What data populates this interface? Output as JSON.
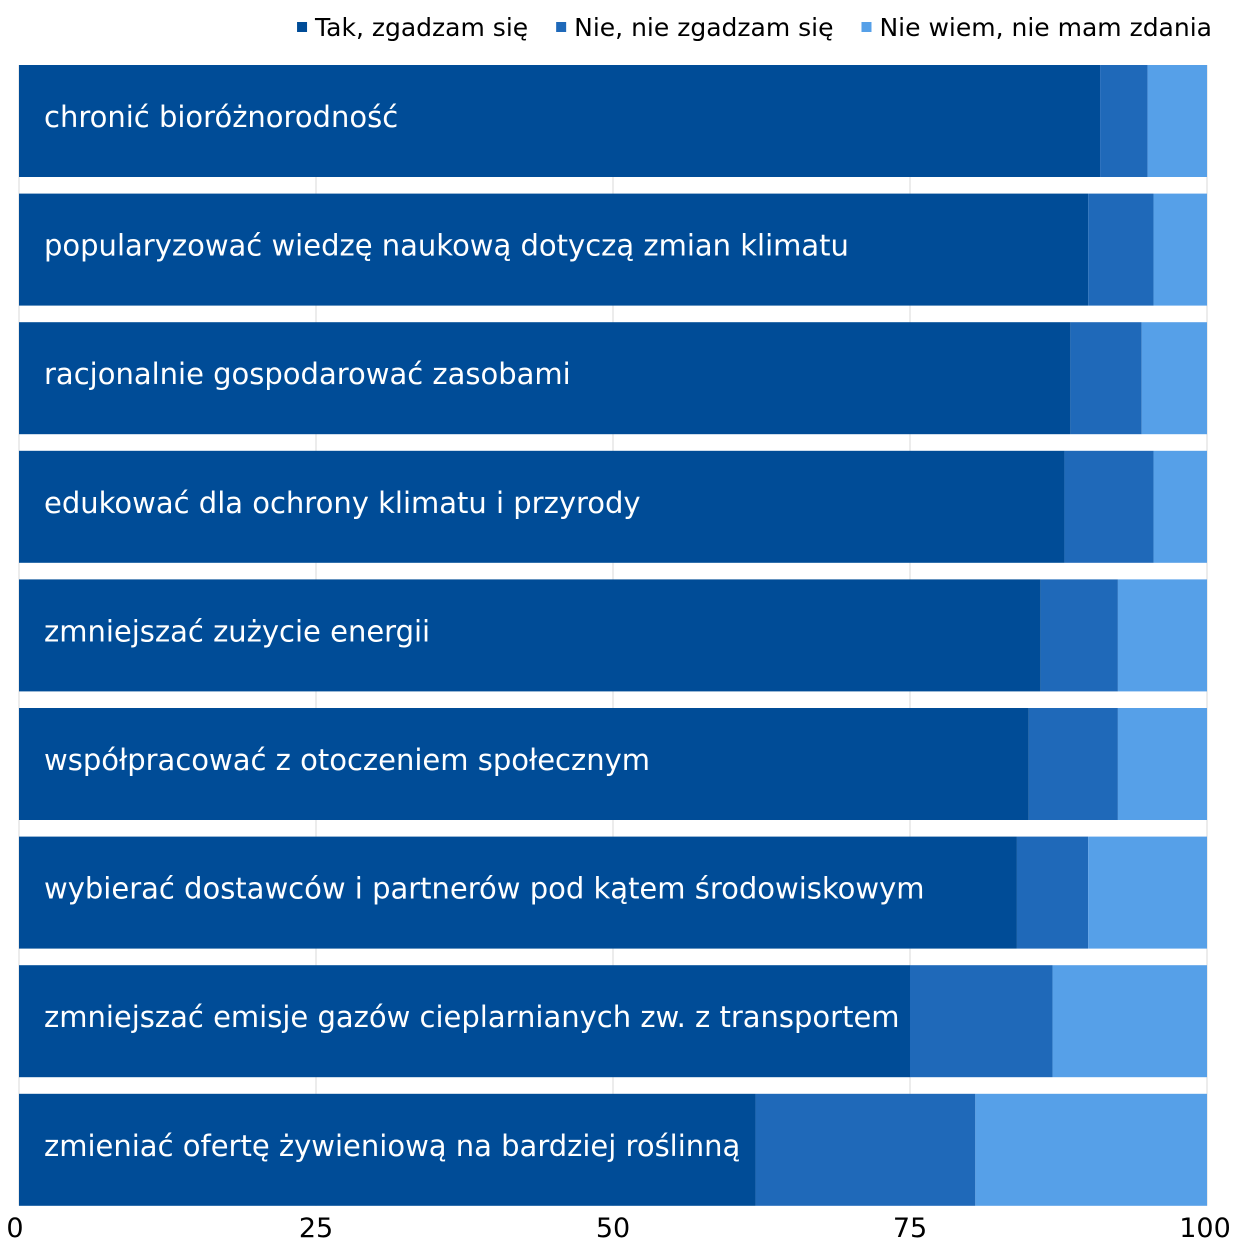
{
  "chart_data": {
    "type": "bar",
    "orientation": "horizontal",
    "stacked": true,
    "categories": [
      "chronić bioróżnorodność",
      "popularyzować wiedzę naukową dotyczą zmian klimatu",
      "racjonalnie gospodarować zasobami",
      "edukować dla ochrony klimatu i przyrody",
      "zmniejszać zużycie energii",
      "współpracować z otoczeniem społecznym",
      "wybierać dostawców i partnerów pod kątem środowiskowym",
      "zmniejszać emisje gazów cieplarnianych zw. z transportem",
      "zmieniać ofertę żywieniową na bardziej roślinną"
    ],
    "series": [
      {
        "name": "Tak, zgadzam się",
        "color": "#004C97",
        "values": [
          91,
          90,
          88.5,
          88,
          86,
          85,
          84,
          75,
          62
        ]
      },
      {
        "name": "Nie, nie zgadzam się",
        "color": "#1F69B9",
        "values": [
          4,
          5.5,
          6,
          7.5,
          6.5,
          7.5,
          6,
          12,
          18.5
        ]
      },
      {
        "name": "Nie wiem, nie mam zdania",
        "color": "#56A0E8",
        "values": [
          5,
          4.5,
          5.5,
          4.5,
          7.5,
          7.5,
          10,
          13,
          19.5
        ]
      }
    ],
    "xticks": [
      "0",
      "25",
      "50",
      "75",
      "100"
    ],
    "xlim": [
      0,
      100
    ],
    "grid": true,
    "legend": "top-right"
  }
}
